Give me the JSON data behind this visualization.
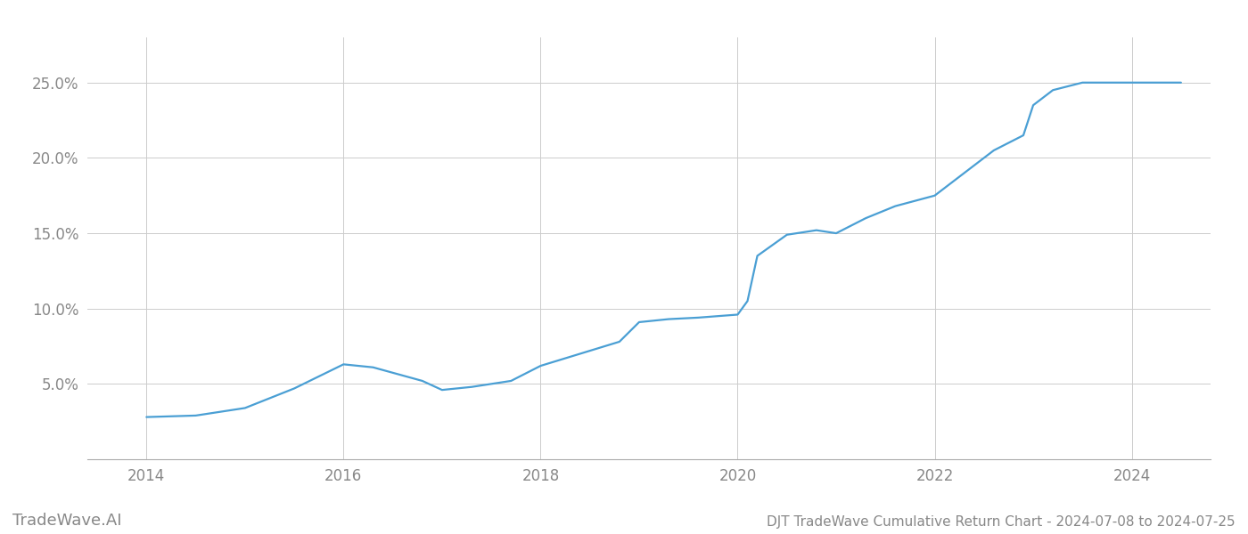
{
  "title": "DJT TradeWave Cumulative Return Chart - 2024-07-08 to 2024-07-25",
  "watermark": "TradeWave.AI",
  "line_color": "#4a9fd4",
  "background_color": "#ffffff",
  "grid_color": "#cccccc",
  "x_values": [
    2014.0,
    2014.5,
    2015.0,
    2015.5,
    2016.0,
    2016.3,
    2016.8,
    2017.0,
    2017.3,
    2017.7,
    2018.0,
    2018.4,
    2018.8,
    2019.0,
    2019.3,
    2019.6,
    2019.8,
    2020.0,
    2020.1,
    2020.2,
    2020.5,
    2020.8,
    2021.0,
    2021.3,
    2021.6,
    2022.0,
    2022.3,
    2022.6,
    2022.9,
    2023.0,
    2023.2,
    2023.5,
    2023.7,
    2024.0,
    2024.5
  ],
  "y_values": [
    2.8,
    2.9,
    3.4,
    4.7,
    6.3,
    6.1,
    5.2,
    4.6,
    4.8,
    5.2,
    6.2,
    7.0,
    7.8,
    9.1,
    9.3,
    9.4,
    9.5,
    9.6,
    10.5,
    13.5,
    14.9,
    15.2,
    15.0,
    16.0,
    16.8,
    17.5,
    19.0,
    20.5,
    21.5,
    23.5,
    24.5,
    25.0,
    25.0,
    25.0,
    25.0
  ],
  "xlim": [
    2013.4,
    2024.8
  ],
  "ylim": [
    0,
    28
  ],
  "yticks": [
    5.0,
    10.0,
    15.0,
    20.0,
    25.0
  ],
  "ytick_labels": [
    "5.0%",
    "10.0%",
    "15.0%",
    "20.0%",
    "25.0%"
  ],
  "xticks": [
    2014,
    2016,
    2018,
    2020,
    2022,
    2024
  ],
  "xtick_labels": [
    "2014",
    "2016",
    "2018",
    "2020",
    "2022",
    "2024"
  ],
  "tick_color": "#888888",
  "label_fontsize": 12,
  "watermark_fontsize": 13,
  "title_fontsize": 11,
  "line_width": 1.6
}
